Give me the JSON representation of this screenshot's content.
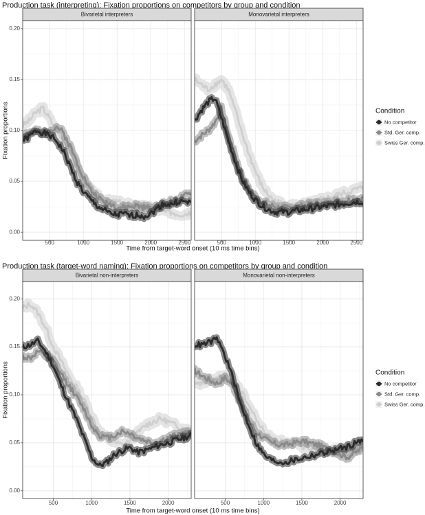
{
  "legend": {
    "title": "Condition",
    "entries": [
      {
        "label": "No competitor",
        "color": "#2b2b2b"
      },
      {
        "label": "Std. Ger. comp.",
        "color": "#8a8a8a"
      },
      {
        "label": "Swiss Ger. comp.",
        "color": "#cfcfcf"
      }
    ]
  },
  "chart_data": [
    {
      "type": "line",
      "title": "Production task (interpreting): Fixation proportions on competitors by group and condition",
      "xlabel": "Time from target-word onset (10 ms time bins)",
      "ylabel": "Fixation proportions",
      "xlim": [
        100,
        2600
      ],
      "ylim": [
        -0.008,
        0.208
      ],
      "xticks": [
        500,
        1000,
        1500,
        2000,
        2500
      ],
      "yticks": [
        0.0,
        0.05,
        0.1,
        0.15,
        0.2
      ],
      "grid": true,
      "legend_position": "right",
      "error_bands": true,
      "panels": [
        {
          "name": "Bivarietal interpreters",
          "series": [
            {
              "name": "No competitor",
              "x": [
                100,
                200,
                300,
                400,
                500,
                600,
                700,
                800,
                900,
                1000,
                1100,
                1200,
                1300,
                1400,
                1500,
                1600,
                1700,
                1800,
                1900,
                2000,
                2100,
                2200,
                2300,
                2400,
                2500,
                2600
              ],
              "y": [
                0.09,
                0.094,
                0.1,
                0.098,
                0.095,
                0.09,
                0.08,
                0.065,
                0.05,
                0.04,
                0.032,
                0.026,
                0.022,
                0.018,
                0.017,
                0.018,
                0.016,
                0.017,
                0.016,
                0.018,
                0.024,
                0.028,
                0.027,
                0.03,
                0.03,
                0.028
              ]
            },
            {
              "name": "Std. Ger. comp.",
              "x": [
                100,
                200,
                300,
                400,
                500,
                600,
                700,
                800,
                900,
                1000,
                1100,
                1200,
                1300,
                1400,
                1500,
                1600,
                1700,
                1800,
                1900,
                2000,
                2100,
                2200,
                2300,
                2400,
                2500,
                2600
              ],
              "y": [
                0.095,
                0.098,
                0.1,
                0.095,
                0.1,
                0.104,
                0.098,
                0.085,
                0.07,
                0.055,
                0.042,
                0.035,
                0.03,
                0.028,
                0.025,
                0.024,
                0.025,
                0.026,
                0.024,
                0.024,
                0.026,
                0.028,
                0.03,
                0.032,
                0.035,
                0.038
              ]
            },
            {
              "name": "Swiss Ger. comp.",
              "x": [
                100,
                200,
                300,
                400,
                500,
                600,
                700,
                800,
                900,
                1000,
                1100,
                1200,
                1300,
                1400,
                1500,
                1600,
                1700,
                1800,
                1900,
                2000,
                2100,
                2200,
                2300,
                2400,
                2500,
                2600
              ],
              "y": [
                0.105,
                0.11,
                0.118,
                0.122,
                0.112,
                0.1,
                0.09,
                0.078,
                0.065,
                0.052,
                0.042,
                0.036,
                0.032,
                0.03,
                0.03,
                0.028,
                0.027,
                0.026,
                0.025,
                0.024,
                0.022,
                0.02,
                0.02,
                0.018,
                0.018,
                0.02
              ]
            }
          ]
        },
        {
          "name": "Monovarietal interpreters",
          "series": [
            {
              "name": "No competitor",
              "x": [
                100,
                200,
                300,
                400,
                500,
                600,
                700,
                800,
                900,
                1000,
                1100,
                1200,
                1300,
                1400,
                1500,
                1600,
                1700,
                1800,
                1900,
                2000,
                2100,
                2200,
                2300,
                2400,
                2500,
                2600
              ],
              "y": [
                0.11,
                0.12,
                0.128,
                0.132,
                0.112,
                0.09,
                0.07,
                0.052,
                0.04,
                0.032,
                0.026,
                0.022,
                0.02,
                0.02,
                0.02,
                0.021,
                0.022,
                0.023,
                0.024,
                0.025,
                0.026,
                0.027,
                0.028,
                0.029,
                0.03,
                0.03
              ]
            },
            {
              "name": "Std. Ger. comp.",
              "x": [
                100,
                200,
                300,
                400,
                500,
                600,
                700,
                800,
                900,
                1000,
                1100,
                1200,
                1300,
                1400,
                1500,
                1600,
                1700,
                1800,
                1900,
                2000,
                2100,
                2200,
                2300,
                2400,
                2500,
                2600
              ],
              "y": [
                0.09,
                0.095,
                0.1,
                0.108,
                0.122,
                0.095,
                0.075,
                0.055,
                0.042,
                0.035,
                0.03,
                0.027,
                0.025,
                0.024,
                0.024,
                0.025,
                0.026,
                0.027,
                0.028,
                0.028,
                0.029,
                0.03,
                0.031,
                0.032,
                0.033,
                0.033
              ]
            },
            {
              "name": "Swiss Ger. comp.",
              "x": [
                100,
                200,
                300,
                400,
                500,
                600,
                700,
                800,
                900,
                1000,
                1100,
                1200,
                1300,
                1400,
                1500,
                1600,
                1700,
                1800,
                1900,
                2000,
                2100,
                2200,
                2300,
                2400,
                2500,
                2600
              ],
              "y": [
                0.15,
                0.145,
                0.14,
                0.145,
                0.15,
                0.14,
                0.12,
                0.098,
                0.078,
                0.06,
                0.045,
                0.036,
                0.03,
                0.028,
                0.026,
                0.026,
                0.027,
                0.028,
                0.03,
                0.032,
                0.034,
                0.036,
                0.038,
                0.04,
                0.042,
                0.044
              ]
            }
          ]
        }
      ]
    },
    {
      "type": "line",
      "title": "Production task (target-word naming): Fixation proportions on competitors by group and condition",
      "xlabel": "Time from target-word onset (10 ms time bins)",
      "ylabel": "Fixation proportions",
      "xlim": [
        100,
        2300
      ],
      "ylim": [
        -0.008,
        0.218
      ],
      "xticks": [
        500,
        1000,
        1500,
        2000
      ],
      "yticks": [
        0.0,
        0.05,
        0.1,
        0.15,
        0.2
      ],
      "grid": true,
      "legend_position": "right",
      "error_bands": true,
      "panels": [
        {
          "name": "Bivarietal non-interpreters",
          "series": [
            {
              "name": "No competitor",
              "x": [
                100,
                200,
                300,
                400,
                500,
                600,
                700,
                800,
                900,
                1000,
                1100,
                1200,
                1300,
                1400,
                1500,
                1600,
                1700,
                1800,
                1900,
                2000,
                2100,
                2200,
                2300
              ],
              "y": [
                0.15,
                0.152,
                0.156,
                0.145,
                0.13,
                0.11,
                0.092,
                0.075,
                0.055,
                0.035,
                0.026,
                0.03,
                0.038,
                0.042,
                0.045,
                0.04,
                0.042,
                0.045,
                0.048,
                0.05,
                0.053,
                0.055,
                0.058
              ]
            },
            {
              "name": "Std. Ger. comp.",
              "x": [
                100,
                200,
                300,
                400,
                500,
                600,
                700,
                800,
                900,
                1000,
                1100,
                1200,
                1300,
                1400,
                1500,
                1600,
                1700,
                1800,
                1900,
                2000,
                2100,
                2200,
                2300
              ],
              "y": [
                0.14,
                0.138,
                0.145,
                0.14,
                0.135,
                0.122,
                0.11,
                0.098,
                0.085,
                0.068,
                0.058,
                0.055,
                0.058,
                0.062,
                0.06,
                0.055,
                0.052,
                0.05,
                0.052,
                0.055,
                0.058,
                0.06,
                0.06
              ]
            },
            {
              "name": "Swiss Ger. comp.",
              "x": [
                100,
                200,
                300,
                400,
                500,
                600,
                700,
                800,
                900,
                1000,
                1100,
                1200,
                1300,
                1400,
                1500,
                1600,
                1700,
                1800,
                1900,
                2000,
                2100,
                2200,
                2300
              ],
              "y": [
                0.19,
                0.195,
                0.185,
                0.17,
                0.15,
                0.135,
                0.12,
                0.108,
                0.095,
                0.078,
                0.062,
                0.055,
                0.05,
                0.048,
                0.052,
                0.06,
                0.068,
                0.072,
                0.075,
                0.072,
                0.068,
                0.065,
                0.062
              ]
            }
          ]
        },
        {
          "name": "Monovarietal non-interpreters",
          "series": [
            {
              "name": "No competitor",
              "x": [
                100,
                200,
                300,
                400,
                500,
                600,
                700,
                800,
                900,
                1000,
                1100,
                1200,
                1300,
                1400,
                1500,
                1600,
                1700,
                1800,
                1900,
                2000,
                2100,
                2200,
                2300
              ],
              "y": [
                0.152,
                0.152,
                0.155,
                0.158,
                0.14,
                0.118,
                0.09,
                0.07,
                0.05,
                0.038,
                0.032,
                0.03,
                0.03,
                0.032,
                0.034,
                0.036,
                0.038,
                0.04,
                0.042,
                0.044,
                0.046,
                0.05,
                0.052
              ]
            },
            {
              "name": "Std. Ger. comp.",
              "x": [
                100,
                200,
                300,
                400,
                500,
                600,
                700,
                800,
                900,
                1000,
                1100,
                1200,
                1300,
                1400,
                1500,
                1600,
                1700,
                1800,
                1900,
                2000,
                2100,
                2200,
                2300
              ],
              "y": [
                0.125,
                0.12,
                0.115,
                0.112,
                0.118,
                0.11,
                0.092,
                0.075,
                0.062,
                0.055,
                0.05,
                0.048,
                0.048,
                0.05,
                0.052,
                0.05,
                0.048,
                0.045,
                0.042,
                0.038,
                0.035,
                0.04,
                0.045
              ]
            },
            {
              "name": "Swiss Ger. comp.",
              "x": [
                100,
                200,
                300,
                400,
                500,
                600,
                700,
                800,
                900,
                1000,
                1100,
                1200,
                1300,
                1400,
                1500,
                1600,
                1700,
                1800,
                1900,
                2000,
                2100,
                2200,
                2300
              ],
              "y": [
                0.11,
                0.112,
                0.115,
                0.118,
                0.12,
                0.118,
                0.105,
                0.09,
                0.075,
                0.062,
                0.055,
                0.052,
                0.05,
                0.048,
                0.046,
                0.045,
                0.044,
                0.043,
                0.042,
                0.042,
                0.042,
                0.042,
                0.042
              ]
            }
          ]
        }
      ]
    }
  ]
}
